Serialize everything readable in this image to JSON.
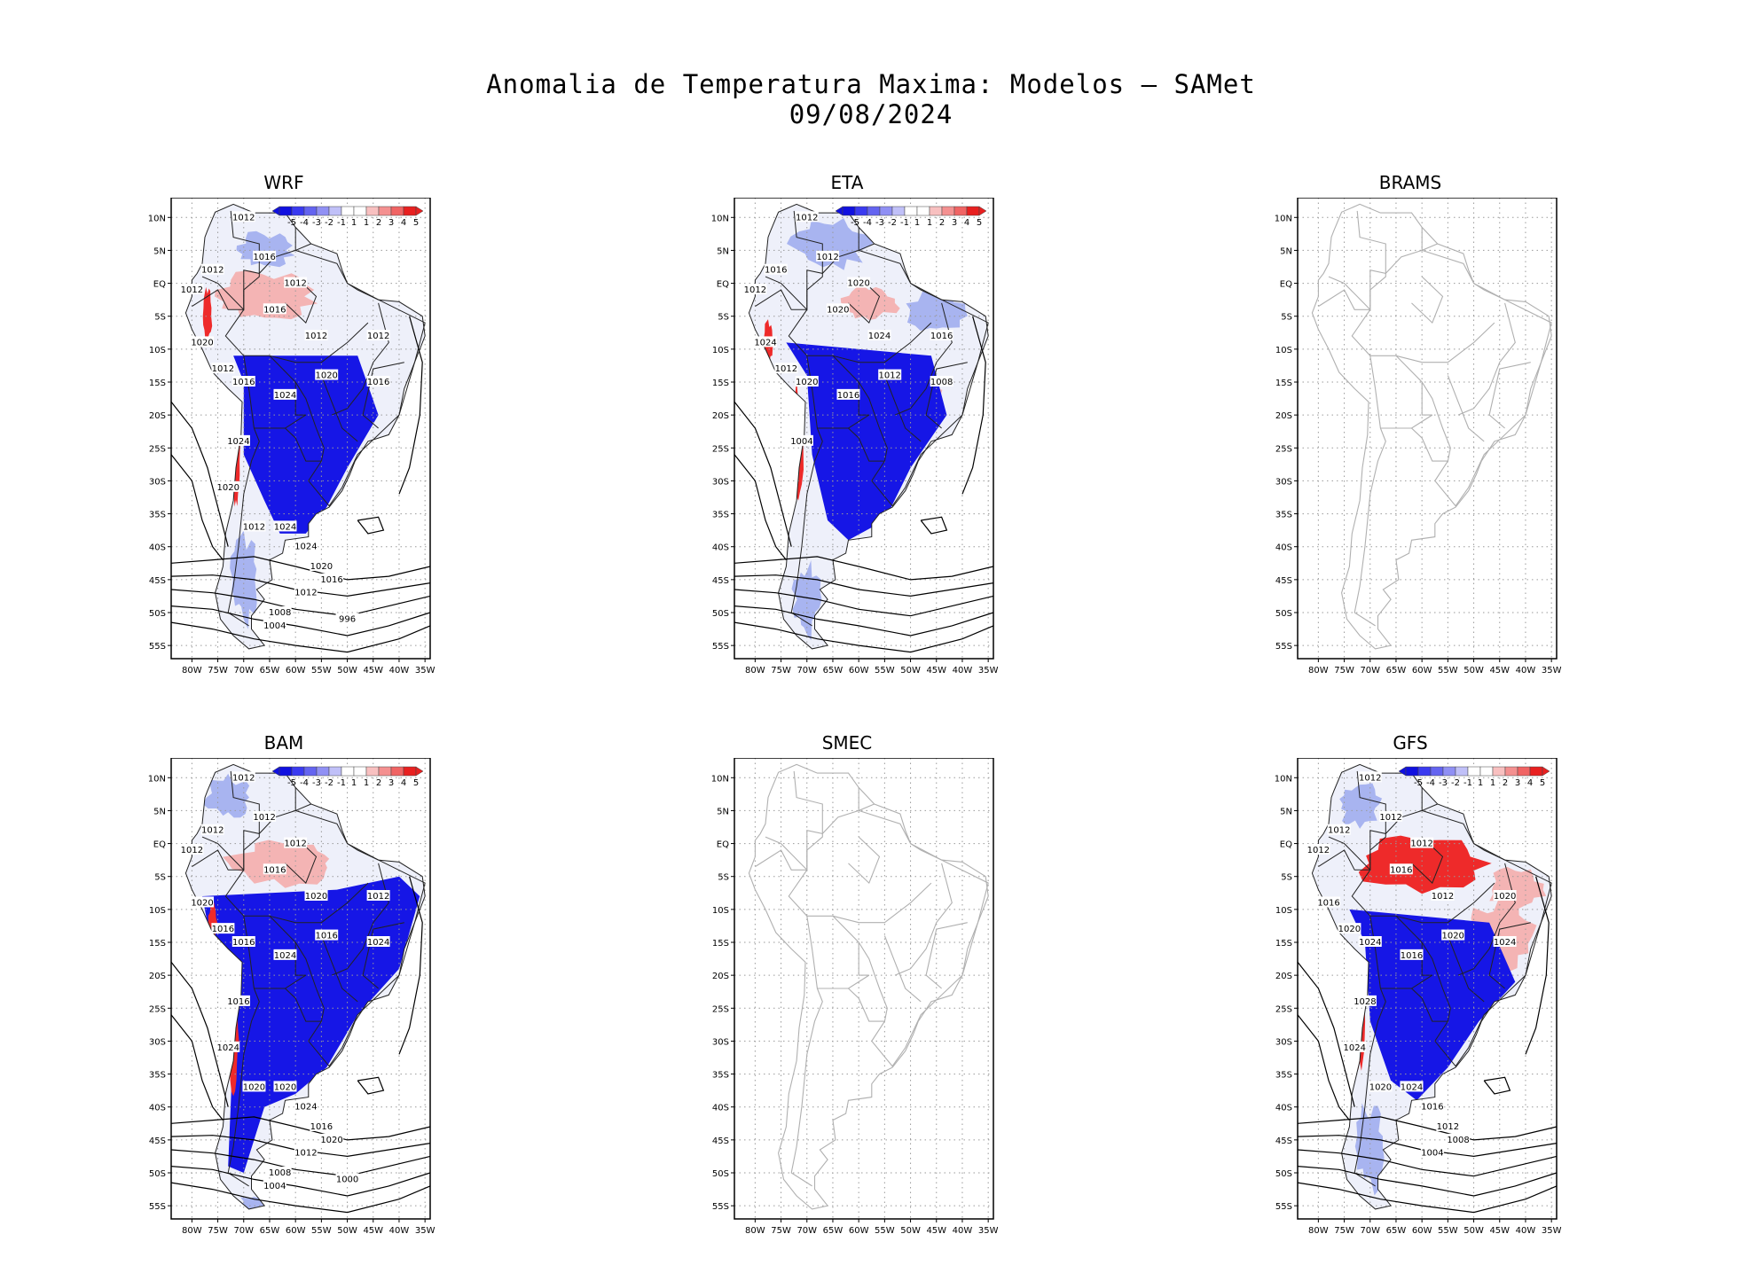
{
  "title": {
    "line1": "Anomalia de Temperatura Maxima: Modelos – SAMet",
    "line2": "09/08/2024"
  },
  "axes": {
    "lat_labels": [
      "10N",
      "5N",
      "EQ",
      "5S",
      "10S",
      "15S",
      "20S",
      "25S",
      "30S",
      "35S",
      "40S",
      "45S",
      "50S",
      "55S"
    ],
    "lon_labels": [
      "80W",
      "75W",
      "70W",
      "65W",
      "60W",
      "55W",
      "50W",
      "45W",
      "40W",
      "35W"
    ]
  },
  "colorbar": {
    "labels": [
      "-5",
      "-4",
      "-3",
      "-2",
      "-1",
      "1",
      "1",
      "2",
      "3",
      "4",
      "5"
    ],
    "colors": [
      "#1010e0",
      "#3a3af0",
      "#6464f0",
      "#9090f4",
      "#c0c0f8",
      "#ffffff",
      "#ffffff",
      "#f8c0c0",
      "#f49090",
      "#f06464",
      "#e82020"
    ]
  },
  "colors": {
    "cold": "#1616e6",
    "cold_light": "#a8b4f0",
    "warm": "#ee2a2a",
    "warm_light": "#f4b4b4",
    "land_neutral": "#eef0fa",
    "empty_outline": "#b0b0b0",
    "contour": "#000000"
  },
  "panels": [
    {
      "name": "WRF",
      "has_data": true,
      "isobars": [
        "1012",
        "1016",
        "1012",
        "1012",
        "1016",
        "1012",
        "1012",
        "1012",
        "1012",
        "1020",
        "1016",
        "1024",
        "1020",
        "1016",
        "1024",
        "1020",
        "1012",
        "1024",
        "1024",
        "1020",
        "1016",
        "1012",
        "1008",
        "1004",
        "996"
      ]
    },
    {
      "name": "ETA",
      "has_data": true,
      "isobars": [
        "1012",
        "1012",
        "1016",
        "1012",
        "1020",
        "1024",
        "1016",
        "1020",
        "1012",
        "1024",
        "1020",
        "1016",
        "1012",
        "1008",
        "1004"
      ]
    },
    {
      "name": "BRAMS",
      "has_data": false,
      "isobars": []
    },
    {
      "name": "BAM",
      "has_data": true,
      "isobars": [
        "1012",
        "1012",
        "1012",
        "1012",
        "1016",
        "1020",
        "1012",
        "1012",
        "1016",
        "1020",
        "1016",
        "1024",
        "1016",
        "1024",
        "1016",
        "1024",
        "1020",
        "1020",
        "1024",
        "1016",
        "1020",
        "1012",
        "1008",
        "1004",
        "1000"
      ]
    },
    {
      "name": "SMEC",
      "has_data": false,
      "isobars": []
    },
    {
      "name": "GFS",
      "has_data": true,
      "isobars": [
        "1012",
        "1012",
        "1012",
        "1012",
        "1016",
        "1012",
        "1020",
        "1012",
        "1020",
        "1016",
        "1024",
        "1016",
        "1020",
        "1024",
        "1028",
        "1024",
        "1020",
        "1024",
        "1016",
        "1012",
        "1008",
        "1004"
      ]
    }
  ]
}
